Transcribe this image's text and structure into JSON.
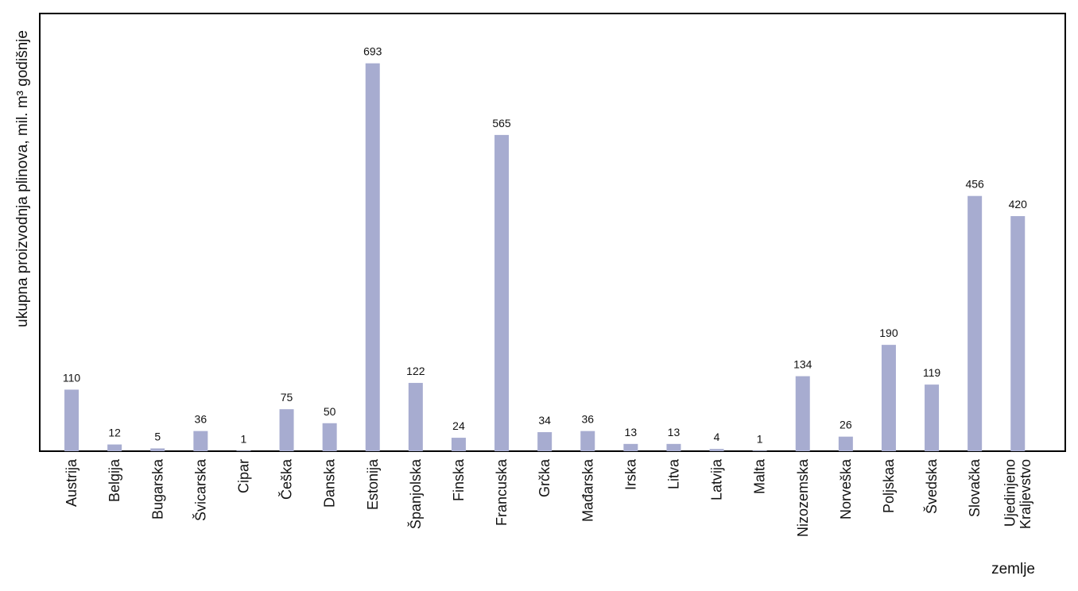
{
  "chart_data": {
    "type": "bar",
    "x_label": "zemlje",
    "y_label": "ukupna proizvodnja plinova, mil. m³ godišnje",
    "categories": [
      "Austrija",
      "Belgija",
      "Bugarska",
      "Švicarska",
      "Cipar",
      "Češka",
      "Danska",
      "Estonija",
      "Španjolska",
      "Finska",
      "Francuska",
      "Grčka",
      "Mađarska",
      "Irska",
      "Litva",
      "Latvija",
      "Malta",
      "Nizozemska",
      "Norveška",
      "Poljskaa",
      "Švedska",
      "Slovačka",
      "Ujedinjeno Kraljevstvo"
    ],
    "values": [
      110,
      12,
      5,
      36,
      1,
      75,
      50,
      693,
      122,
      24,
      565,
      34,
      36,
      13,
      13,
      4,
      1,
      134,
      26,
      190,
      119,
      456,
      420
    ],
    "color": "#a7acd0",
    "ylim": [
      0,
      782
    ]
  }
}
